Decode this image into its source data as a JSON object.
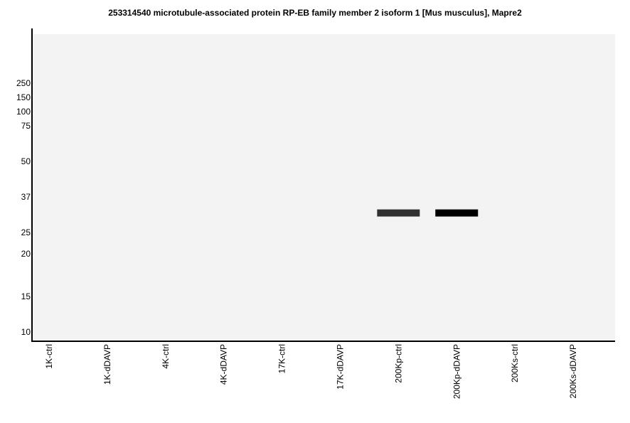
{
  "chart_data": {
    "type": "blot",
    "title": "253314540 microtubule-associated protein RP-EB family member 2 isoform 1 [Mus musculus], Mapre2",
    "y_scale": "log",
    "y_ticks": [
      250,
      150,
      100,
      75,
      50,
      37,
      25,
      20,
      15,
      10
    ],
    "lanes": [
      "1K-ctrl",
      "1K-dDAVP",
      "4K-ctrl",
      "4K-dDAVP",
      "17K-ctrl",
      "17K-dDAVP",
      "200Kp-ctrl",
      "200Kp-dDAVP",
      "200Ks-ctrl",
      "200Ks-dDAVP"
    ],
    "bands": [
      {
        "lane": "200Kp-ctrl",
        "mw": 31,
        "intensity": 0.8
      },
      {
        "lane": "200Kp-dDAVP",
        "mw": 31,
        "intensity": 1.0
      }
    ],
    "colors": {
      "plot_background": "#f2f3f2",
      "band": "#000000"
    }
  }
}
